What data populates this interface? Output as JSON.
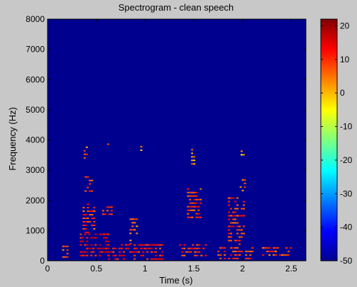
{
  "chart_data": {
    "type": "heatmap",
    "title": "Spectrogram - clean speech",
    "xlabel": "Time (s)",
    "ylabel": "Frequency (Hz)",
    "xlim": [
      0,
      2.65
    ],
    "ylim": [
      0,
      8000
    ],
    "x_ticks": [
      0,
      0.5,
      1,
      1.5,
      2,
      2.5
    ],
    "x_tick_labels": [
      "0",
      "0.5",
      "1",
      "1.5",
      "2",
      "2.5"
    ],
    "y_ticks": [
      0,
      1000,
      2000,
      3000,
      4000,
      5000,
      6000,
      7000,
      8000
    ],
    "y_tick_labels": [
      "0",
      "1000",
      "2000",
      "3000",
      "4000",
      "5000",
      "6000",
      "7000",
      "8000"
    ],
    "colorbar": {
      "range": [
        -50,
        22
      ],
      "ticks": [
        -50,
        -40,
        -30,
        -20,
        -10,
        0,
        10,
        20
      ],
      "tick_labels": [
        "-50",
        "-40",
        "-30",
        "-20",
        "-10",
        "0",
        "10",
        "20"
      ],
      "colormap": "jet"
    },
    "background_level": -50,
    "energy_regions": [
      {
        "t": [
          0.15,
          0.2
        ],
        "f": [
          100,
          500
        ],
        "level": 12
      },
      {
        "t": [
          0.33,
          0.62
        ],
        "f": [
          80,
          900
        ],
        "level": 18
      },
      {
        "t": [
          0.36,
          0.48
        ],
        "f": [
          900,
          1900
        ],
        "level": 14
      },
      {
        "t": [
          0.38,
          0.46
        ],
        "f": [
          2300,
          2800
        ],
        "level": 12
      },
      {
        "t": [
          0.37,
          0.4
        ],
        "f": [
          3400,
          3900
        ],
        "level": 10
      },
      {
        "t": [
          0.56,
          0.66
        ],
        "f": [
          1500,
          1800
        ],
        "level": 12
      },
      {
        "t": [
          0.59,
          0.62
        ],
        "f": [
          3800,
          4000
        ],
        "level": 8
      },
      {
        "t": [
          0.62,
          1.18
        ],
        "f": [
          80,
          550
        ],
        "level": 16
      },
      {
        "t": [
          0.84,
          0.92
        ],
        "f": [
          500,
          1400
        ],
        "level": 10
      },
      {
        "t": [
          0.95,
          0.98
        ],
        "f": [
          3600,
          3800
        ],
        "level": 6
      },
      {
        "t": [
          1.35,
          1.62
        ],
        "f": [
          150,
          550
        ],
        "level": 14
      },
      {
        "t": [
          1.43,
          1.58
        ],
        "f": [
          1400,
          2400
        ],
        "level": 14
      },
      {
        "t": [
          1.45,
          1.5
        ],
        "f": [
          3200,
          3700
        ],
        "level": 8
      },
      {
        "t": [
          1.72,
          2.1
        ],
        "f": [
          80,
          450
        ],
        "level": 14
      },
      {
        "t": [
          1.85,
          2.02
        ],
        "f": [
          500,
          2100
        ],
        "level": 14
      },
      {
        "t": [
          1.97,
          2.03
        ],
        "f": [
          2300,
          2700
        ],
        "level": 10
      },
      {
        "t": [
          1.98,
          2.02
        ],
        "f": [
          3500,
          3650
        ],
        "level": 6
      },
      {
        "t": [
          2.2,
          2.5
        ],
        "f": [
          150,
          450
        ],
        "level": 12
      }
    ],
    "grid": false
  }
}
